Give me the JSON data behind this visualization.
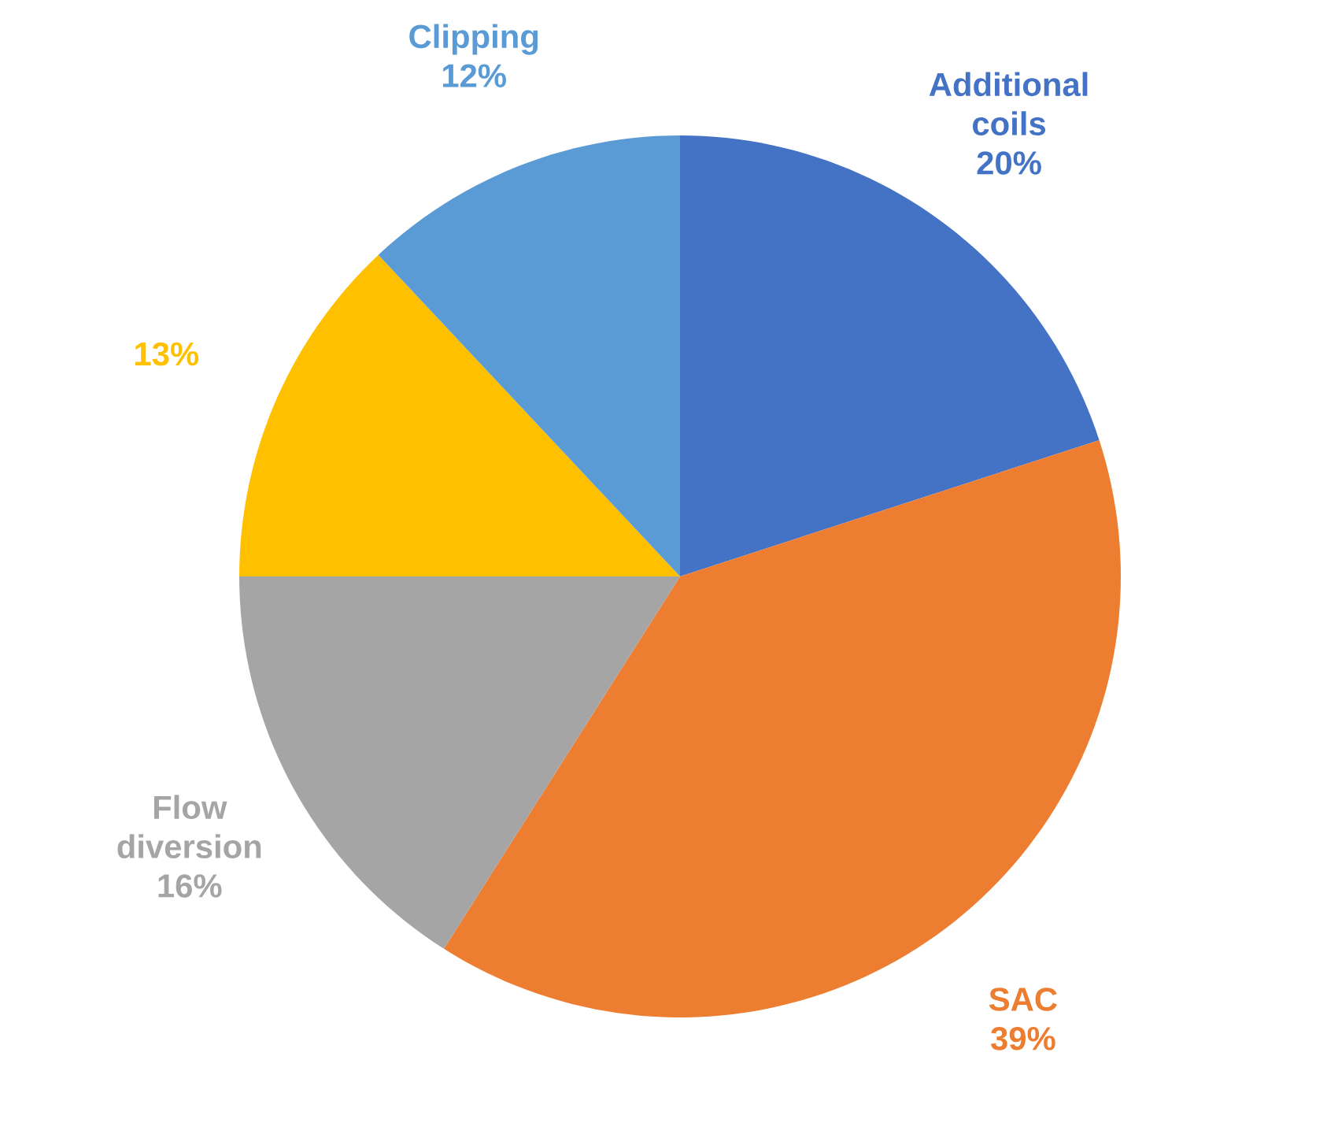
{
  "chart_data": {
    "type": "pie",
    "categories": [
      "Additional coils",
      "SAC",
      "Flow diversion",
      null,
      "Clipping"
    ],
    "values": [
      20,
      39,
      16,
      13,
      12
    ],
    "value_labels": [
      "20%",
      "39%",
      "16%",
      "13%",
      "12%"
    ],
    "colors": [
      "#4472c4",
      "#ed7d31",
      "#a5a5a5",
      "#ffc000",
      "#5b9bd5"
    ]
  }
}
